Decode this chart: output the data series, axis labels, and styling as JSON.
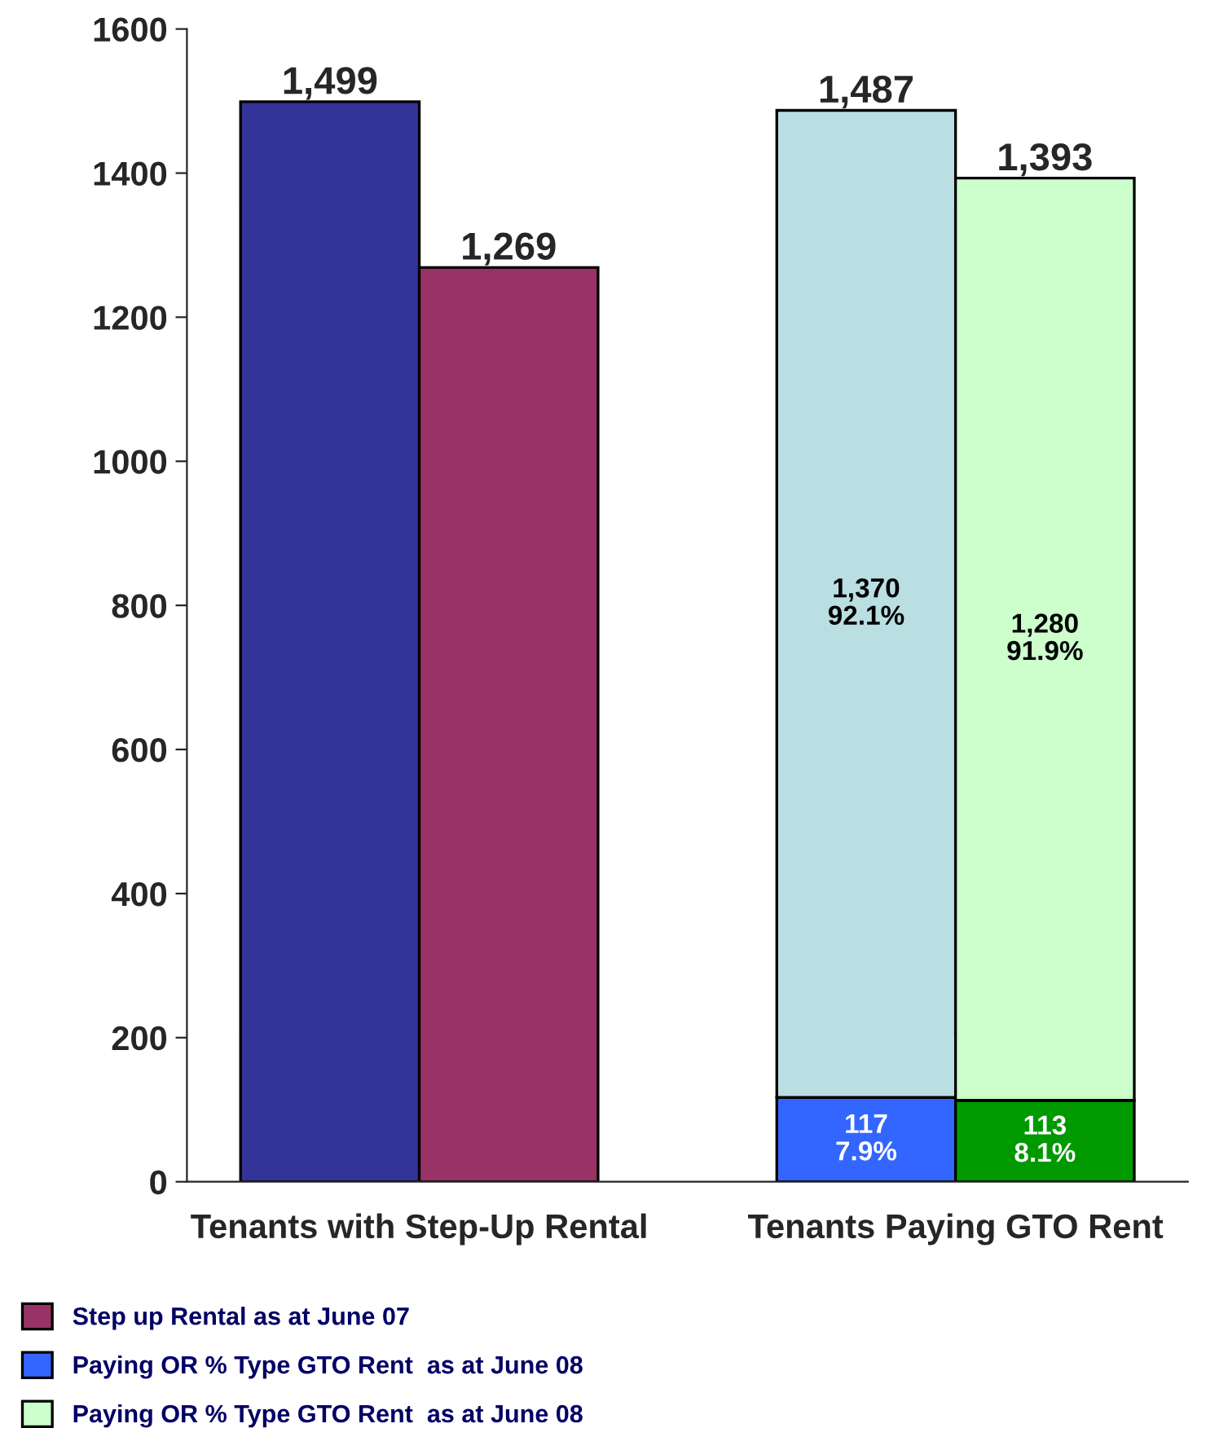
{
  "chart_data": {
    "type": "bar",
    "stacked": true,
    "categories": [
      null,
      null,
      null,
      null,
      null
    ],
    "annotations": [
      "Tenants with Step-Up Rental",
      "Tenants Paying GTO Rent"
    ],
    "series": [
      {
        "color": "#333399",
        "values": [
          1499,
          null,
          null,
          null,
          null
        ]
      },
      {
        "name": "Step up Rental as at June 07",
        "color": "#993366",
        "values": [
          null,
          1269,
          null,
          null,
          null
        ]
      },
      {
        "name": "Paying OR % Type GTO Rent  as at June 08",
        "color": "#3366ff",
        "values": [
          null,
          null,
          null,
          117,
          null
        ],
        "value_labels": [
          null,
          null,
          null,
          "117\n7.9%",
          null
        ]
      },
      {
        "color": "#b9dfe3",
        "values": [
          null,
          null,
          null,
          1370,
          null
        ],
        "value_labels": [
          null,
          null,
          null,
          "1,370\n92.1%",
          null
        ]
      },
      {
        "color": "#009900",
        "values": [
          null,
          null,
          null,
          null,
          113
        ],
        "value_labels": [
          null,
          null,
          null,
          null,
          "113\n8.1%"
        ]
      },
      {
        "name": "Paying OR % Type GTO Rent  as at June 08",
        "color": "#ccffcc",
        "values": [
          null,
          null,
          null,
          null,
          1280
        ],
        "value_labels": [
          null,
          null,
          null,
          null,
          "1,280\n91.9%"
        ]
      }
    ],
    "totals": [
      "1,499",
      "1,269",
      null,
      "1,487",
      "1,393"
    ],
    "ylim": [
      0,
      1600
    ],
    "yticks": [
      0,
      200,
      400,
      600,
      800,
      1000,
      1200,
      1400,
      1600
    ],
    "grid": false,
    "legend": "bottom left"
  }
}
